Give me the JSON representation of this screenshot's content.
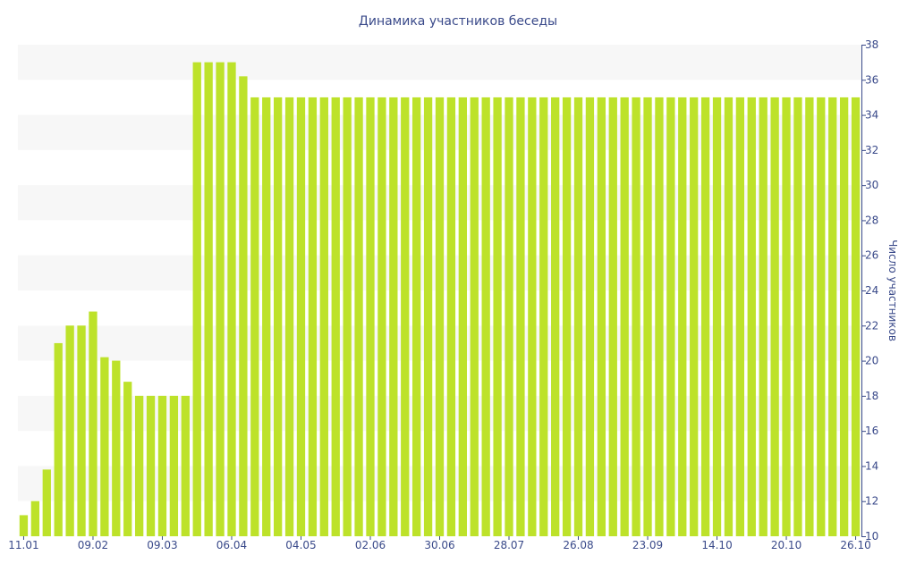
{
  "chart_data": {
    "type": "bar",
    "title": "Динамика участников беседы",
    "ylabel": "Число участников",
    "xlabel": "",
    "ylim": [
      10,
      38
    ],
    "y_ticks": [
      10,
      12,
      14,
      16,
      18,
      20,
      22,
      24,
      26,
      28,
      30,
      32,
      34,
      36,
      38
    ],
    "y_axis_side": "right",
    "x_tick_labels": [
      "11.01",
      "09.02",
      "09.03",
      "06.04",
      "04.05",
      "02.06",
      "30.06",
      "28.07",
      "26.08",
      "23.09",
      "14.10",
      "20.10",
      "26.10"
    ],
    "x_tick_bar_index": [
      0,
      6,
      12,
      18,
      24,
      30,
      36,
      42,
      48,
      54,
      60,
      66,
      72
    ],
    "grid": "alternating horizontal bands",
    "bar_color": "#bde22a",
    "band_color": "#f7f7f7",
    "text_color": "#3a4a8a",
    "values": [
      11.2,
      12.0,
      13.8,
      21.0,
      22.0,
      22.0,
      22.8,
      20.2,
      20.0,
      18.8,
      18.0,
      18.0,
      18.0,
      18.0,
      18.0,
      37.0,
      37.0,
      37.0,
      37.0,
      36.2,
      35.0,
      35.0,
      35.0,
      35.0,
      35.0,
      35.0,
      35.0,
      35.0,
      35.0,
      35.0,
      35.0,
      35.0,
      35.0,
      35.0,
      35.0,
      35.0,
      35.0,
      35.0,
      35.0,
      35.0,
      35.0,
      35.0,
      35.0,
      35.0,
      35.0,
      35.0,
      35.0,
      35.0,
      35.0,
      35.0,
      35.0,
      35.0,
      35.0,
      35.0,
      35.0,
      35.0,
      35.0,
      35.0,
      35.0,
      35.0,
      35.0,
      35.0,
      35.0,
      35.0,
      35.0,
      35.0,
      35.0,
      35.0,
      35.0,
      35.0,
      35.0,
      35.0,
      35.0
    ]
  }
}
